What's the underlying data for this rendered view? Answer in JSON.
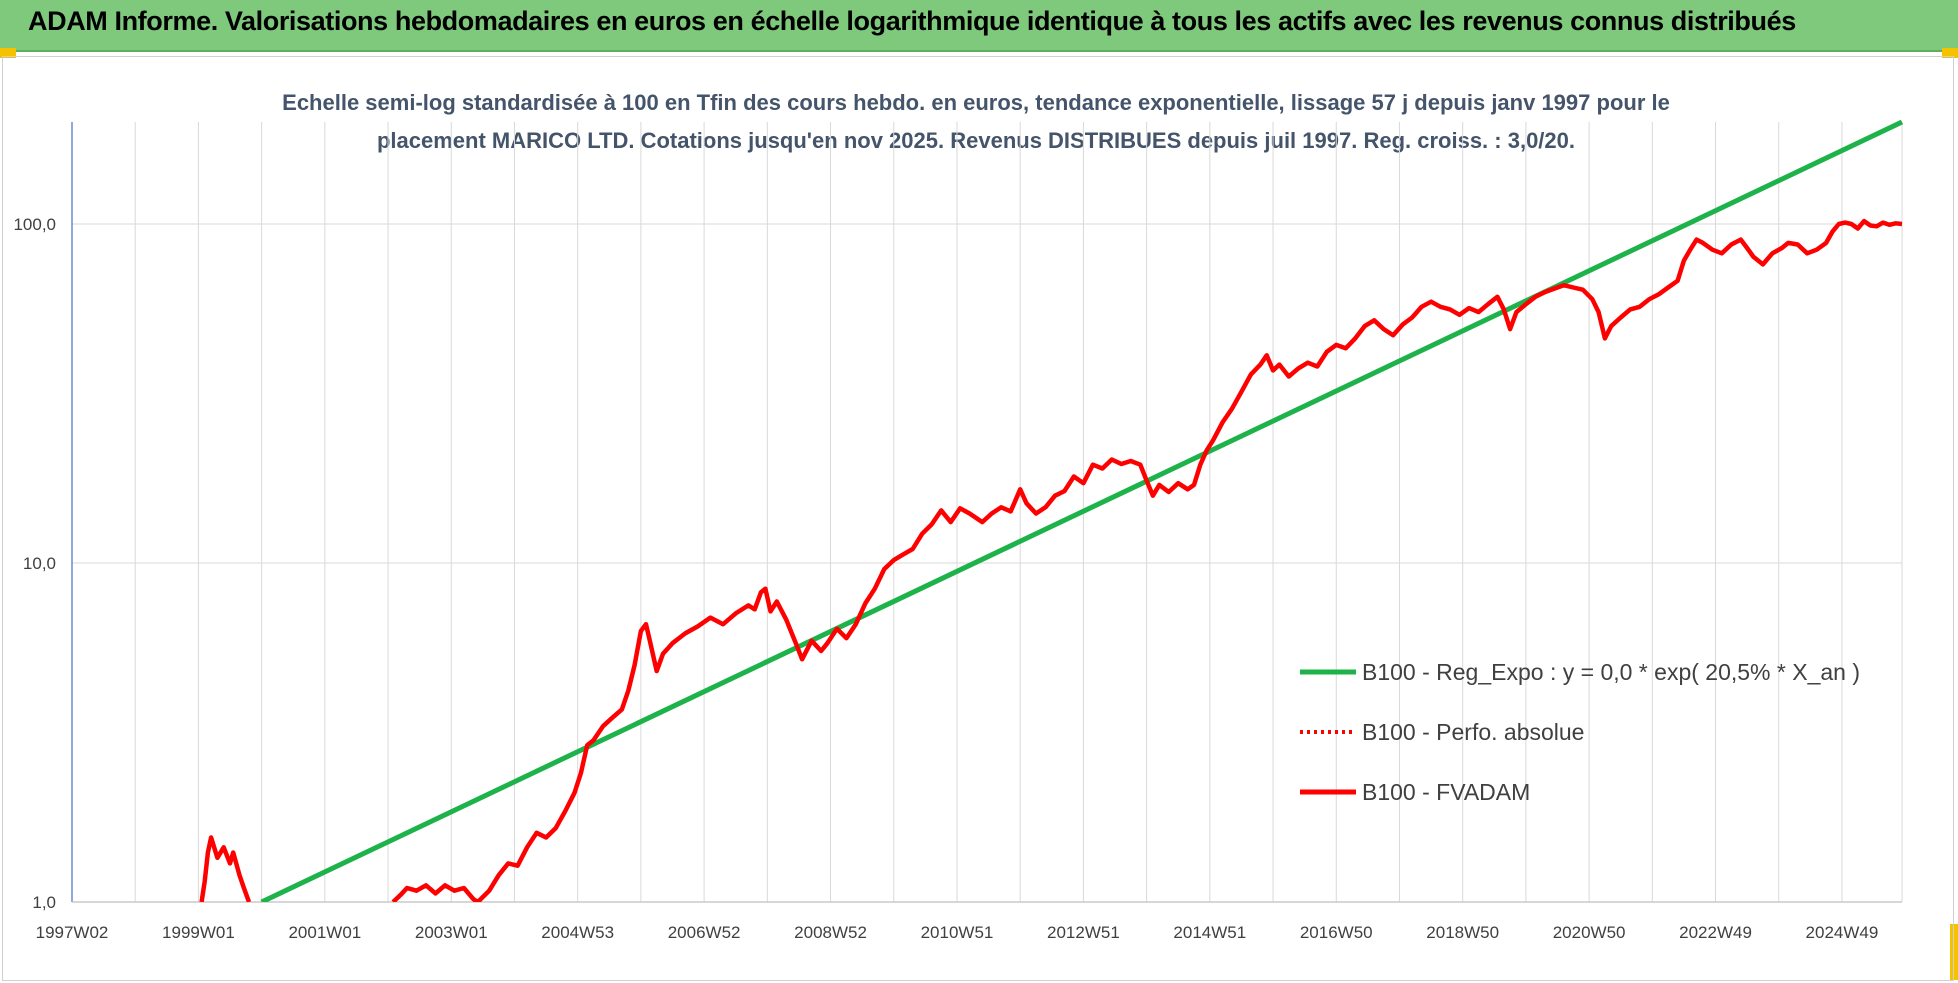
{
  "header": {
    "title": "ADAM Informe. Valorisations hebdomadaires en euros en échelle logarithmique identique à tous les actifs avec les revenus connus distribués"
  },
  "colors": {
    "header_bg": "#7ec97c",
    "corner_accent": "#f5c200",
    "trend_green": "#1db24a",
    "fvadam_red": "#ff0000",
    "perfo_red": "#ff0000",
    "grid": "#d9d9d9",
    "axis": "#4472c4"
  },
  "chart_data": {
    "type": "line",
    "title_line1": "Echelle semi-log standardisée à 100 en Tfin des cours hebdo. en euros, tendance exponentielle, lissage 57 j depuis janv 1997 pour le",
    "title_line2": "placement MARICO LTD. Cotations jusqu'en nov 2025. Revenus DISTRIBUES depuis juil 1997. Reg. croiss. : 3,0/20.",
    "y_scale": "log",
    "ylim": [
      1,
      200
    ],
    "y_ticks": [
      {
        "value": 1,
        "label": "1,0"
      },
      {
        "value": 10,
        "label": "10,0"
      },
      {
        "value": 100,
        "label": "100,0"
      }
    ],
    "xlim": [
      1997.0,
      2025.95
    ],
    "x_ticks": [
      {
        "value": 1997.0,
        "label": "1997W02"
      },
      {
        "value": 1999.0,
        "label": "1999W01"
      },
      {
        "value": 2001.0,
        "label": "2001W01"
      },
      {
        "value": 2003.0,
        "label": "2003W01"
      },
      {
        "value": 2005.0,
        "label": "2004W53"
      },
      {
        "value": 2007.0,
        "label": "2006W52"
      },
      {
        "value": 2009.0,
        "label": "2008W52"
      },
      {
        "value": 2011.0,
        "label": "2010W51"
      },
      {
        "value": 2013.0,
        "label": "2012W51"
      },
      {
        "value": 2015.0,
        "label": "2014W51"
      },
      {
        "value": 2017.0,
        "label": "2016W50"
      },
      {
        "value": 2019.0,
        "label": "2018W50"
      },
      {
        "value": 2021.0,
        "label": "2020W50"
      },
      {
        "value": 2023.0,
        "label": "2022W49"
      },
      {
        "value": 2025.0,
        "label": "2024W49"
      }
    ],
    "grid": true,
    "legend_position": "right",
    "series": [
      {
        "name": "B100 - Reg_Expo : y = 0,0 * exp( 20,5% *  X_an )",
        "style": "solid-green",
        "points": [
          [
            2000.0,
            1.0
          ],
          [
            2025.95,
            200
          ]
        ]
      },
      {
        "name": "B100 - Perfo. absolue",
        "style": "dotted-red",
        "points": []
      },
      {
        "name": "B100 - FVADAM",
        "style": "solid-red",
        "segments": [
          [
            [
              1999.05,
              1.0
            ],
            [
              1999.1,
              1.15
            ],
            [
              1999.15,
              1.4
            ],
            [
              1999.2,
              1.55
            ],
            [
              1999.3,
              1.35
            ],
            [
              1999.4,
              1.45
            ],
            [
              1999.5,
              1.3
            ],
            [
              1999.55,
              1.4
            ],
            [
              1999.65,
              1.2
            ],
            [
              1999.72,
              1.1
            ],
            [
              1999.8,
              1.0
            ]
          ],
          [
            [
              2002.08,
              1.0
            ],
            [
              2002.2,
              1.05
            ],
            [
              2002.3,
              1.1
            ],
            [
              2002.45,
              1.08
            ],
            [
              2002.6,
              1.12
            ],
            [
              2002.75,
              1.06
            ],
            [
              2002.9,
              1.12
            ],
            [
              2003.05,
              1.08
            ],
            [
              2003.2,
              1.1
            ],
            [
              2003.35,
              1.02
            ],
            [
              2003.42,
              1.0
            ]
          ],
          [
            [
              2003.42,
              1.0
            ],
            [
              2003.6,
              1.08
            ],
            [
              2003.75,
              1.2
            ],
            [
              2003.9,
              1.3
            ],
            [
              2004.05,
              1.28
            ],
            [
              2004.2,
              1.45
            ],
            [
              2004.35,
              1.6
            ],
            [
              2004.5,
              1.55
            ],
            [
              2004.65,
              1.65
            ],
            [
              2004.8,
              1.85
            ],
            [
              2004.95,
              2.1
            ],
            [
              2005.05,
              2.4
            ],
            [
              2005.15,
              2.9
            ],
            [
              2005.25,
              3.0
            ],
            [
              2005.4,
              3.3
            ],
            [
              2005.55,
              3.5
            ],
            [
              2005.7,
              3.7
            ],
            [
              2005.8,
              4.2
            ],
            [
              2005.9,
              5.0
            ],
            [
              2006.0,
              6.3
            ],
            [
              2006.08,
              6.6
            ],
            [
              2006.15,
              5.8
            ],
            [
              2006.25,
              4.8
            ],
            [
              2006.35,
              5.4
            ],
            [
              2006.5,
              5.8
            ],
            [
              2006.7,
              6.2
            ],
            [
              2006.9,
              6.5
            ],
            [
              2007.1,
              6.9
            ],
            [
              2007.3,
              6.6
            ],
            [
              2007.5,
              7.1
            ],
            [
              2007.7,
              7.5
            ],
            [
              2007.8,
              7.3
            ],
            [
              2007.9,
              8.2
            ],
            [
              2007.97,
              8.4
            ],
            [
              2008.05,
              7.2
            ],
            [
              2008.15,
              7.7
            ],
            [
              2008.3,
              6.8
            ],
            [
              2008.45,
              5.8
            ],
            [
              2008.55,
              5.2
            ],
            [
              2008.7,
              5.9
            ],
            [
              2008.85,
              5.5
            ],
            [
              2008.95,
              5.8
            ],
            [
              2009.1,
              6.4
            ],
            [
              2009.25,
              6.0
            ],
            [
              2009.4,
              6.6
            ],
            [
              2009.55,
              7.6
            ],
            [
              2009.7,
              8.4
            ],
            [
              2009.85,
              9.6
            ],
            [
              2010.0,
              10.2
            ],
            [
              2010.15,
              10.6
            ],
            [
              2010.3,
              11.0
            ],
            [
              2010.45,
              12.2
            ],
            [
              2010.6,
              13.0
            ],
            [
              2010.75,
              14.3
            ],
            [
              2010.9,
              13.2
            ],
            [
              2011.05,
              14.5
            ],
            [
              2011.2,
              14.0
            ],
            [
              2011.4,
              13.2
            ],
            [
              2011.55,
              14.0
            ],
            [
              2011.7,
              14.6
            ],
            [
              2011.85,
              14.2
            ],
            [
              2012.0,
              16.5
            ],
            [
              2012.1,
              15.0
            ],
            [
              2012.25,
              14.0
            ],
            [
              2012.4,
              14.6
            ],
            [
              2012.55,
              15.8
            ],
            [
              2012.7,
              16.3
            ],
            [
              2012.85,
              18.0
            ],
            [
              2013.0,
              17.2
            ],
            [
              2013.15,
              19.5
            ],
            [
              2013.3,
              19.0
            ],
            [
              2013.45,
              20.2
            ],
            [
              2013.6,
              19.6
            ],
            [
              2013.75,
              20.0
            ],
            [
              2013.9,
              19.5
            ],
            [
              2014.0,
              17.5
            ],
            [
              2014.1,
              15.8
            ],
            [
              2014.2,
              17.0
            ],
            [
              2014.35,
              16.2
            ],
            [
              2014.5,
              17.2
            ],
            [
              2014.65,
              16.5
            ],
            [
              2014.75,
              17.0
            ],
            [
              2014.85,
              19.5
            ],
            [
              2014.95,
              21.5
            ],
            [
              2015.05,
              23.0
            ],
            [
              2015.2,
              26.0
            ],
            [
              2015.35,
              28.5
            ],
            [
              2015.5,
              32.0
            ],
            [
              2015.65,
              36.0
            ],
            [
              2015.8,
              38.5
            ],
            [
              2015.9,
              41.0
            ],
            [
              2016.0,
              37.0
            ],
            [
              2016.1,
              38.5
            ],
            [
              2016.25,
              35.5
            ],
            [
              2016.4,
              37.5
            ],
            [
              2016.55,
              39.0
            ],
            [
              2016.7,
              38.0
            ],
            [
              2016.85,
              42.0
            ],
            [
              2017.0,
              44.0
            ],
            [
              2017.15,
              43.0
            ],
            [
              2017.3,
              46.0
            ],
            [
              2017.45,
              50.0
            ],
            [
              2017.6,
              52.0
            ],
            [
              2017.75,
              49.0
            ],
            [
              2017.9,
              47.0
            ],
            [
              2018.05,
              50.5
            ],
            [
              2018.2,
              53.0
            ],
            [
              2018.35,
              57.0
            ],
            [
              2018.5,
              59.0
            ],
            [
              2018.65,
              57.0
            ],
            [
              2018.8,
              56.0
            ],
            [
              2018.95,
              54.0
            ],
            [
              2019.1,
              56.5
            ],
            [
              2019.25,
              55.0
            ],
            [
              2019.4,
              58.0
            ],
            [
              2019.55,
              61.0
            ],
            [
              2019.65,
              56.0
            ],
            [
              2019.75,
              49.0
            ],
            [
              2019.85,
              55.0
            ],
            [
              2020.0,
              58.0
            ],
            [
              2020.15,
              61.0
            ],
            [
              2020.3,
              63.0
            ],
            [
              2020.45,
              64.5
            ],
            [
              2020.6,
              66.0
            ],
            [
              2020.75,
              65.0
            ],
            [
              2020.9,
              64.0
            ],
            [
              2021.05,
              60.0
            ],
            [
              2021.15,
              55.0
            ],
            [
              2021.25,
              46.0
            ],
            [
              2021.35,
              50.0
            ],
            [
              2021.5,
              53.0
            ],
            [
              2021.65,
              56.0
            ],
            [
              2021.8,
              57.0
            ],
            [
              2021.95,
              60.0
            ],
            [
              2022.1,
              62.0
            ],
            [
              2022.25,
              65.0
            ],
            [
              2022.4,
              68.0
            ],
            [
              2022.5,
              78.0
            ],
            [
              2022.6,
              84.0
            ],
            [
              2022.7,
              90.0
            ],
            [
              2022.8,
              88.0
            ],
            [
              2022.95,
              84.0
            ],
            [
              2023.1,
              82.0
            ],
            [
              2023.25,
              87.0
            ],
            [
              2023.4,
              90.0
            ],
            [
              2023.5,
              85.0
            ],
            [
              2023.6,
              80.0
            ],
            [
              2023.75,
              76.0
            ],
            [
              2023.9,
              82.0
            ],
            [
              2024.05,
              85.0
            ],
            [
              2024.15,
              88.0
            ],
            [
              2024.3,
              87.0
            ],
            [
              2024.45,
              82.0
            ],
            [
              2024.6,
              84.0
            ],
            [
              2024.75,
              88.0
            ],
            [
              2024.85,
              95.0
            ],
            [
              2024.95,
              100.0
            ],
            [
              2025.05,
              101.0
            ],
            [
              2025.15,
              100.0
            ],
            [
              2025.25,
              97.0
            ],
            [
              2025.35,
              102.0
            ],
            [
              2025.45,
              99.0
            ],
            [
              2025.55,
              98.5
            ],
            [
              2025.65,
              101.0
            ],
            [
              2025.75,
              99.5
            ],
            [
              2025.85,
              100.5
            ],
            [
              2025.95,
              100.0
            ]
          ]
        ]
      }
    ]
  }
}
